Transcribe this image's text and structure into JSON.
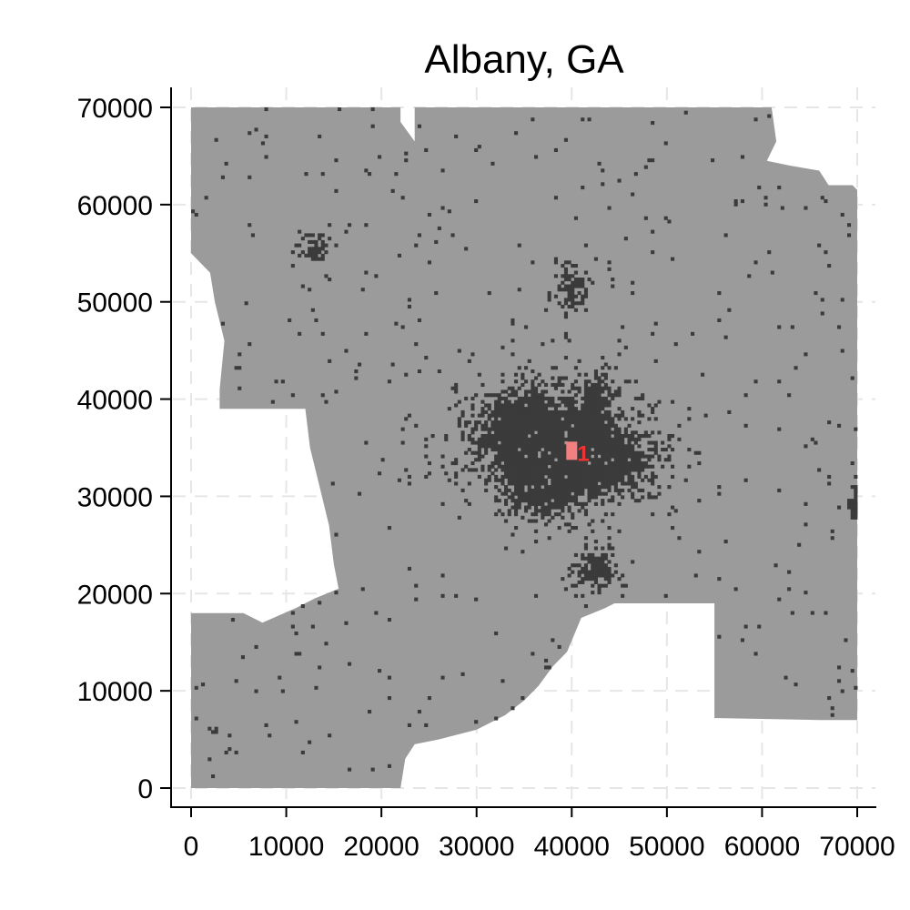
{
  "chart_data": {
    "type": "map",
    "title": "Albany, GA",
    "xlim": [
      0,
      70000
    ],
    "ylim": [
      0,
      70000
    ],
    "x_ticks": [
      0,
      10000,
      20000,
      30000,
      40000,
      50000,
      60000,
      70000
    ],
    "y_ticks": [
      0,
      10000,
      20000,
      30000,
      40000,
      50000,
      60000,
      70000
    ],
    "x_tick_labels": [
      "0",
      "10000",
      "20000",
      "30000",
      "40000",
      "50000",
      "60000",
      "70000"
    ],
    "y_tick_labels": [
      "0",
      "10000",
      "20000",
      "30000",
      "40000",
      "50000",
      "60000",
      "70000"
    ],
    "grid": true,
    "region_color": "#9b9b9b",
    "developed_color": "#3b3b3b",
    "highlight_color": "#f28080",
    "cbd_label": "1",
    "cbd_point": [
      40000,
      34500
    ],
    "region_outline": [
      [
        0,
        70000
      ],
      [
        22000,
        70000
      ],
      [
        22000,
        68500
      ],
      [
        23500,
        66500
      ],
      [
        23500,
        70000
      ],
      [
        61000,
        70000
      ],
      [
        61500,
        66500
      ],
      [
        60500,
        64500
      ],
      [
        63000,
        64000
      ],
      [
        66000,
        63500
      ],
      [
        67000,
        62000
      ],
      [
        69500,
        62000
      ],
      [
        70000,
        61500
      ],
      [
        70000,
        7000
      ],
      [
        66000,
        7000
      ],
      [
        55500,
        7200
      ],
      [
        55000,
        7200
      ],
      [
        55000,
        19000
      ],
      [
        44500,
        19000
      ],
      [
        43500,
        18500
      ],
      [
        41000,
        17500
      ],
      [
        39500,
        14000
      ],
      [
        38000,
        12500
      ],
      [
        36500,
        10500
      ],
      [
        35000,
        9000
      ],
      [
        33000,
        7500
      ],
      [
        30000,
        6000
      ],
      [
        26000,
        5000
      ],
      [
        23500,
        4500
      ],
      [
        22500,
        3000
      ],
      [
        22000,
        0
      ],
      [
        0,
        0
      ],
      [
        0,
        18000
      ],
      [
        5500,
        18000
      ],
      [
        7500,
        17000
      ],
      [
        11000,
        18500
      ],
      [
        13000,
        19500
      ],
      [
        15500,
        20500
      ],
      [
        15000,
        23000
      ],
      [
        14500,
        27000
      ],
      [
        13500,
        31000
      ],
      [
        12500,
        35000
      ],
      [
        12000,
        39000
      ],
      [
        3000,
        39000
      ],
      [
        3000,
        41000
      ],
      [
        3500,
        46000
      ],
      [
        2500,
        50000
      ],
      [
        2000,
        53000
      ],
      [
        0,
        55000
      ]
    ],
    "developed_clusters": [
      {
        "center": [
          39000,
          35000
        ],
        "radius_x": 7500,
        "radius_y": 4500
      },
      {
        "center": [
          35000,
          37500
        ],
        "radius_x": 4500,
        "radius_y": 3500
      },
      {
        "center": [
          43000,
          33500
        ],
        "radius_x": 4500,
        "radius_y": 2500
      },
      {
        "center": [
          37000,
          30500
        ],
        "radius_x": 3500,
        "radius_y": 2500
      },
      {
        "center": [
          42500,
          22500
        ],
        "radius_x": 2000,
        "radius_y": 2000
      },
      {
        "center": [
          13000,
          55500
        ],
        "radius_x": 1200,
        "radius_y": 1100
      },
      {
        "center": [
          40000,
          51500
        ],
        "radius_x": 1500,
        "radius_y": 2000
      },
      {
        "center": [
          42500,
          40000
        ],
        "radius_x": 1500,
        "radius_y": 2500
      },
      {
        "center": [
          69800,
          29000
        ],
        "radius_x": 600,
        "radius_y": 1800
      }
    ]
  }
}
